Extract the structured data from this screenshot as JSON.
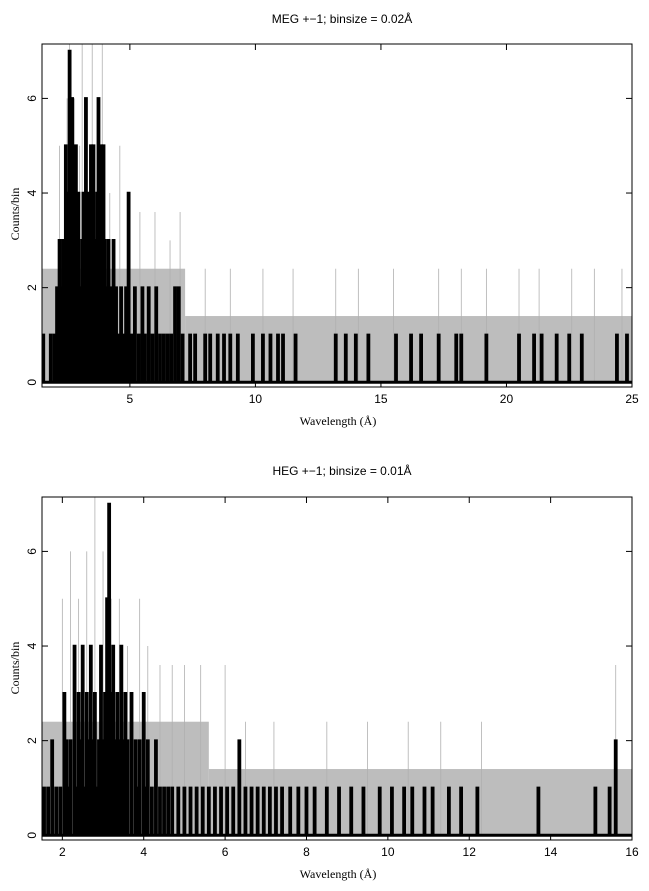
{
  "chart_data": [
    {
      "type": "histogram",
      "title": "MEG +−1; binsize = 0.02Å",
      "xlabel": "Wavelength (Å)",
      "ylabel": "Counts/bin",
      "xlim": [
        1.5,
        25
      ],
      "ylim": [
        -0.1,
        7.15
      ],
      "x_ticks": [
        5,
        10,
        15,
        20,
        25
      ],
      "y_ticks": [
        0,
        2,
        4,
        6
      ],
      "binsize": 0.02,
      "error_band": [
        {
          "x_start": 1.5,
          "x_end": 7.2,
          "upper": 2.4
        },
        {
          "x_start": 7.2,
          "x_end": 25,
          "upper": 1.4
        }
      ],
      "gray_spikes": [
        {
          "x": 2.2,
          "y": 5
        },
        {
          "x": 2.5,
          "y": 6
        },
        {
          "x": 2.6,
          "y": 7.2
        },
        {
          "x": 2.8,
          "y": 6
        },
        {
          "x": 3.0,
          "y": 5
        },
        {
          "x": 3.1,
          "y": 7.2
        },
        {
          "x": 3.3,
          "y": 6
        },
        {
          "x": 3.5,
          "y": 7.2
        },
        {
          "x": 3.7,
          "y": 5
        },
        {
          "x": 3.9,
          "y": 7.2
        },
        {
          "x": 4.2,
          "y": 4
        },
        {
          "x": 4.6,
          "y": 5
        },
        {
          "x": 5.0,
          "y": 4
        },
        {
          "x": 5.4,
          "y": 3.6
        },
        {
          "x": 6.0,
          "y": 3.6
        },
        {
          "x": 6.6,
          "y": 3
        },
        {
          "x": 7.0,
          "y": 3.6
        },
        {
          "x": 8.0,
          "y": 2.4
        },
        {
          "x": 9.0,
          "y": 2.4
        },
        {
          "x": 10.3,
          "y": 2.4
        },
        {
          "x": 11.5,
          "y": 2.4
        },
        {
          "x": 13.2,
          "y": 2.4
        },
        {
          "x": 14.1,
          "y": 2.4
        },
        {
          "x": 15.5,
          "y": 2.4
        },
        {
          "x": 17.3,
          "y": 2.4
        },
        {
          "x": 18.2,
          "y": 2.4
        },
        {
          "x": 19.2,
          "y": 2.4
        },
        {
          "x": 20.5,
          "y": 2.4
        },
        {
          "x": 21.3,
          "y": 2.4
        },
        {
          "x": 22.6,
          "y": 2.4
        },
        {
          "x": 23.5,
          "y": 2.4
        },
        {
          "x": 24.6,
          "y": 2.4
        }
      ],
      "spikes": [
        {
          "x": 1.55,
          "y": 1
        },
        {
          "x": 1.85,
          "y": 1
        },
        {
          "x": 2.0,
          "y": 1
        },
        {
          "x": 2.1,
          "y": 2
        },
        {
          "x": 2.2,
          "y": 3
        },
        {
          "x": 2.3,
          "y": 2
        },
        {
          "x": 2.35,
          "y": 3
        },
        {
          "x": 2.45,
          "y": 5
        },
        {
          "x": 2.5,
          "y": 3
        },
        {
          "x": 2.55,
          "y": 4
        },
        {
          "x": 2.6,
          "y": 7
        },
        {
          "x": 2.7,
          "y": 6
        },
        {
          "x": 2.75,
          "y": 4
        },
        {
          "x": 2.8,
          "y": 3
        },
        {
          "x": 2.85,
          "y": 5
        },
        {
          "x": 2.9,
          "y": 3
        },
        {
          "x": 2.95,
          "y": 4
        },
        {
          "x": 3.0,
          "y": 2
        },
        {
          "x": 3.1,
          "y": 3
        },
        {
          "x": 3.15,
          "y": 4
        },
        {
          "x": 3.2,
          "y": 3
        },
        {
          "x": 3.25,
          "y": 6
        },
        {
          "x": 3.3,
          "y": 3
        },
        {
          "x": 3.35,
          "y": 4
        },
        {
          "x": 3.45,
          "y": 5
        },
        {
          "x": 3.5,
          "y": 3
        },
        {
          "x": 3.55,
          "y": 5
        },
        {
          "x": 3.65,
          "y": 3
        },
        {
          "x": 3.7,
          "y": 4
        },
        {
          "x": 3.75,
          "y": 6
        },
        {
          "x": 3.8,
          "y": 3
        },
        {
          "x": 3.85,
          "y": 5
        },
        {
          "x": 3.9,
          "y": 3
        },
        {
          "x": 3.95,
          "y": 5
        },
        {
          "x": 4.0,
          "y": 3
        },
        {
          "x": 4.05,
          "y": 2
        },
        {
          "x": 4.15,
          "y": 3
        },
        {
          "x": 4.25,
          "y": 2
        },
        {
          "x": 4.35,
          "y": 3
        },
        {
          "x": 4.45,
          "y": 2
        },
        {
          "x": 4.55,
          "y": 1
        },
        {
          "x": 4.65,
          "y": 2
        },
        {
          "x": 4.75,
          "y": 1
        },
        {
          "x": 4.85,
          "y": 2
        },
        {
          "x": 4.95,
          "y": 4
        },
        {
          "x": 5.05,
          "y": 1
        },
        {
          "x": 5.2,
          "y": 2
        },
        {
          "x": 5.35,
          "y": 1
        },
        {
          "x": 5.5,
          "y": 2
        },
        {
          "x": 5.6,
          "y": 1
        },
        {
          "x": 5.75,
          "y": 2
        },
        {
          "x": 5.9,
          "y": 1
        },
        {
          "x": 6.05,
          "y": 2
        },
        {
          "x": 6.2,
          "y": 1
        },
        {
          "x": 6.35,
          "y": 1
        },
        {
          "x": 6.5,
          "y": 1
        },
        {
          "x": 6.65,
          "y": 1
        },
        {
          "x": 6.8,
          "y": 2
        },
        {
          "x": 6.95,
          "y": 2
        },
        {
          "x": 7.1,
          "y": 1
        },
        {
          "x": 7.4,
          "y": 1
        },
        {
          "x": 7.6,
          "y": 1
        },
        {
          "x": 8.0,
          "y": 1
        },
        {
          "x": 8.2,
          "y": 1
        },
        {
          "x": 8.5,
          "y": 1
        },
        {
          "x": 8.75,
          "y": 1
        },
        {
          "x": 9.0,
          "y": 1
        },
        {
          "x": 9.3,
          "y": 1
        },
        {
          "x": 9.9,
          "y": 1
        },
        {
          "x": 10.3,
          "y": 1
        },
        {
          "x": 10.6,
          "y": 1
        },
        {
          "x": 10.9,
          "y": 1
        },
        {
          "x": 11.1,
          "y": 1
        },
        {
          "x": 11.6,
          "y": 1
        },
        {
          "x": 13.2,
          "y": 1
        },
        {
          "x": 13.6,
          "y": 1
        },
        {
          "x": 14.0,
          "y": 1
        },
        {
          "x": 14.5,
          "y": 1
        },
        {
          "x": 15.6,
          "y": 1
        },
        {
          "x": 16.2,
          "y": 1
        },
        {
          "x": 16.6,
          "y": 1
        },
        {
          "x": 17.3,
          "y": 1
        },
        {
          "x": 18.0,
          "y": 1
        },
        {
          "x": 18.2,
          "y": 1
        },
        {
          "x": 19.2,
          "y": 1
        },
        {
          "x": 20.5,
          "y": 1
        },
        {
          "x": 21.1,
          "y": 1
        },
        {
          "x": 21.4,
          "y": 1
        },
        {
          "x": 22.0,
          "y": 1
        },
        {
          "x": 22.5,
          "y": 1
        },
        {
          "x": 23.0,
          "y": 1
        },
        {
          "x": 24.4,
          "y": 1
        },
        {
          "x": 24.8,
          "y": 1
        }
      ]
    },
    {
      "type": "histogram",
      "title": "HEG +−1; binsize = 0.01Å",
      "xlabel": "Wavelength (Å)",
      "ylabel": "Counts/bin",
      "xlim": [
        1.5,
        16
      ],
      "ylim": [
        -0.1,
        7.15
      ],
      "x_ticks": [
        2,
        4,
        6,
        8,
        10,
        12,
        14,
        16
      ],
      "y_ticks": [
        0,
        2,
        4,
        6
      ],
      "binsize": 0.01,
      "error_band": [
        {
          "x_start": 1.5,
          "x_end": 5.6,
          "upper": 2.4
        },
        {
          "x_start": 5.6,
          "x_end": 16,
          "upper": 1.4
        }
      ],
      "gray_spikes": [
        {
          "x": 2.0,
          "y": 5
        },
        {
          "x": 2.2,
          "y": 6
        },
        {
          "x": 2.4,
          "y": 5
        },
        {
          "x": 2.6,
          "y": 6
        },
        {
          "x": 2.8,
          "y": 7.2
        },
        {
          "x": 3.0,
          "y": 6
        },
        {
          "x": 3.2,
          "y": 5
        },
        {
          "x": 3.4,
          "y": 5
        },
        {
          "x": 3.6,
          "y": 4
        },
        {
          "x": 3.9,
          "y": 5
        },
        {
          "x": 4.1,
          "y": 4
        },
        {
          "x": 4.4,
          "y": 3.6
        },
        {
          "x": 4.7,
          "y": 3.6
        },
        {
          "x": 5.0,
          "y": 3.6
        },
        {
          "x": 5.4,
          "y": 3.6
        },
        {
          "x": 6.0,
          "y": 3.6
        },
        {
          "x": 6.5,
          "y": 2.4
        },
        {
          "x": 7.2,
          "y": 2.4
        },
        {
          "x": 8.5,
          "y": 2.4
        },
        {
          "x": 9.5,
          "y": 2.4
        },
        {
          "x": 10.5,
          "y": 2.4
        },
        {
          "x": 11.3,
          "y": 2.4
        },
        {
          "x": 12.3,
          "y": 2.4
        },
        {
          "x": 15.6,
          "y": 3.6
        }
      ],
      "spikes": [
        {
          "x": 1.55,
          "y": 1
        },
        {
          "x": 1.65,
          "y": 1
        },
        {
          "x": 1.75,
          "y": 2
        },
        {
          "x": 1.85,
          "y": 1
        },
        {
          "x": 1.95,
          "y": 1
        },
        {
          "x": 2.05,
          "y": 3
        },
        {
          "x": 2.1,
          "y": 2
        },
        {
          "x": 2.15,
          "y": 1
        },
        {
          "x": 2.2,
          "y": 2
        },
        {
          "x": 2.3,
          "y": 4
        },
        {
          "x": 2.35,
          "y": 1
        },
        {
          "x": 2.4,
          "y": 3
        },
        {
          "x": 2.45,
          "y": 2
        },
        {
          "x": 2.5,
          "y": 4
        },
        {
          "x": 2.55,
          "y": 1
        },
        {
          "x": 2.6,
          "y": 3
        },
        {
          "x": 2.65,
          "y": 2
        },
        {
          "x": 2.7,
          "y": 4
        },
        {
          "x": 2.75,
          "y": 2
        },
        {
          "x": 2.8,
          "y": 3
        },
        {
          "x": 2.85,
          "y": 1
        },
        {
          "x": 2.9,
          "y": 2
        },
        {
          "x": 2.95,
          "y": 4
        },
        {
          "x": 3.0,
          "y": 2
        },
        {
          "x": 3.05,
          "y": 3
        },
        {
          "x": 3.1,
          "y": 5
        },
        {
          "x": 3.15,
          "y": 7
        },
        {
          "x": 3.2,
          "y": 3
        },
        {
          "x": 3.25,
          "y": 4
        },
        {
          "x": 3.3,
          "y": 2
        },
        {
          "x": 3.35,
          "y": 3
        },
        {
          "x": 3.4,
          "y": 2
        },
        {
          "x": 3.45,
          "y": 4
        },
        {
          "x": 3.5,
          "y": 2
        },
        {
          "x": 3.55,
          "y": 3
        },
        {
          "x": 3.6,
          "y": 2
        },
        {
          "x": 3.7,
          "y": 3
        },
        {
          "x": 3.8,
          "y": 2
        },
        {
          "x": 3.85,
          "y": 1
        },
        {
          "x": 3.9,
          "y": 2
        },
        {
          "x": 4.0,
          "y": 3
        },
        {
          "x": 4.05,
          "y": 1
        },
        {
          "x": 4.1,
          "y": 2
        },
        {
          "x": 4.2,
          "y": 1
        },
        {
          "x": 4.3,
          "y": 2
        },
        {
          "x": 4.4,
          "y": 1
        },
        {
          "x": 4.5,
          "y": 1
        },
        {
          "x": 4.6,
          "y": 1
        },
        {
          "x": 4.7,
          "y": 1
        },
        {
          "x": 4.85,
          "y": 1
        },
        {
          "x": 5.0,
          "y": 1
        },
        {
          "x": 5.15,
          "y": 1
        },
        {
          "x": 5.3,
          "y": 1
        },
        {
          "x": 5.45,
          "y": 1
        },
        {
          "x": 5.6,
          "y": 1
        },
        {
          "x": 5.75,
          "y": 1
        },
        {
          "x": 5.9,
          "y": 1
        },
        {
          "x": 6.05,
          "y": 1
        },
        {
          "x": 6.2,
          "y": 1
        },
        {
          "x": 6.35,
          "y": 2
        },
        {
          "x": 6.5,
          "y": 1
        },
        {
          "x": 6.65,
          "y": 1
        },
        {
          "x": 6.8,
          "y": 1
        },
        {
          "x": 6.95,
          "y": 1
        },
        {
          "x": 7.1,
          "y": 1
        },
        {
          "x": 7.25,
          "y": 1
        },
        {
          "x": 7.4,
          "y": 1
        },
        {
          "x": 7.6,
          "y": 1
        },
        {
          "x": 7.8,
          "y": 1
        },
        {
          "x": 8.0,
          "y": 1
        },
        {
          "x": 8.2,
          "y": 1
        },
        {
          "x": 8.5,
          "y": 1
        },
        {
          "x": 8.8,
          "y": 1
        },
        {
          "x": 9.1,
          "y": 1
        },
        {
          "x": 9.4,
          "y": 1
        },
        {
          "x": 9.8,
          "y": 1
        },
        {
          "x": 10.1,
          "y": 1
        },
        {
          "x": 10.4,
          "y": 1
        },
        {
          "x": 10.6,
          "y": 1
        },
        {
          "x": 10.9,
          "y": 1
        },
        {
          "x": 11.1,
          "y": 1
        },
        {
          "x": 11.5,
          "y": 1
        },
        {
          "x": 11.8,
          "y": 1
        },
        {
          "x": 12.2,
          "y": 1
        },
        {
          "x": 13.7,
          "y": 1
        },
        {
          "x": 15.1,
          "y": 1
        },
        {
          "x": 15.45,
          "y": 1
        },
        {
          "x": 15.6,
          "y": 2
        }
      ]
    }
  ]
}
